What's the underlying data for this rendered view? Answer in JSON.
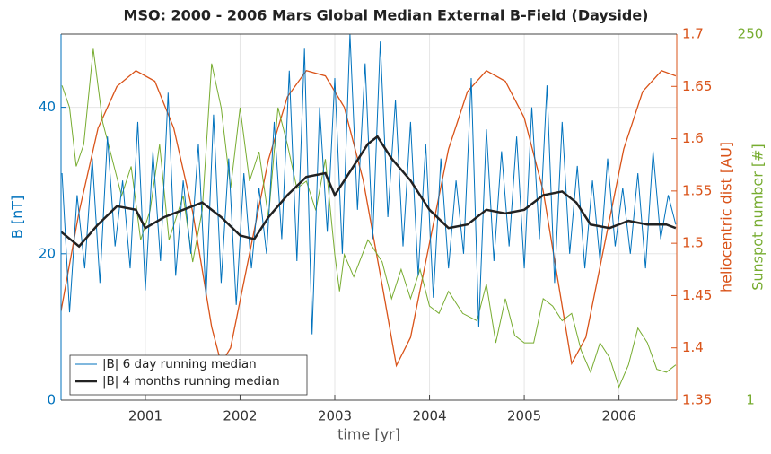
{
  "chart_data": {
    "type": "line",
    "title": "MSO: 2000 - 2006 Mars Global Median External B-Field (Dayside)",
    "xlabel": "time [yr]",
    "ylabel": "B [nT]",
    "y2label": "heliocentric dist [AU]",
    "y3label": "Sunspot number [#]",
    "xlim": [
      2000.11,
      2006.61
    ],
    "xticks": [
      2001,
      2002,
      2003,
      2004,
      2005,
      2006
    ],
    "ylim": [
      0,
      50
    ],
    "yticks": [
      0,
      20,
      40
    ],
    "ycolor": "#0072bd",
    "y2lim": [
      1.35,
      1.7
    ],
    "y2ticks": [
      1.35,
      1.4,
      1.45,
      1.5,
      1.55,
      1.6,
      1.65,
      1.7
    ],
    "y2color": "#d95319",
    "y3lim": [
      1,
      250
    ],
    "y3ticks": [
      1,
      250
    ],
    "y3color": "#77ac30",
    "grid": true,
    "legend": "lower left",
    "series": [
      {
        "name": "|B| 6 day running median",
        "color": "#0072bd",
        "axis": "y",
        "width": 1,
        "legend": true,
        "x": [
          2000.12,
          2000.2,
          2000.28,
          2000.36,
          2000.44,
          2000.52,
          2000.6,
          2000.68,
          2000.76,
          2000.84,
          2000.92,
          2001,
          2001.08,
          2001.16,
          2001.24,
          2001.32,
          2001.4,
          2001.48,
          2001.56,
          2001.64,
          2001.72,
          2001.8,
          2001.88,
          2001.96,
          2002.04,
          2002.12,
          2002.2,
          2002.28,
          2002.36,
          2002.44,
          2002.52,
          2002.6,
          2002.68,
          2002.76,
          2002.84,
          2002.92,
          2003,
          2003.08,
          2003.16,
          2003.24,
          2003.32,
          2003.4,
          2003.48,
          2003.56,
          2003.64,
          2003.72,
          2003.8,
          2003.88,
          2003.96,
          2004.04,
          2004.12,
          2004.2,
          2004.28,
          2004.36,
          2004.44,
          2004.52,
          2004.6,
          2004.68,
          2004.76,
          2004.84,
          2004.92,
          2005,
          2005.08,
          2005.16,
          2005.24,
          2005.32,
          2005.4,
          2005.48,
          2005.56,
          2005.64,
          2005.72,
          2005.8,
          2005.88,
          2005.96,
          2006.04,
          2006.12,
          2006.2,
          2006.28,
          2006.36,
          2006.44,
          2006.52,
          2006.6
        ],
        "values": [
          31,
          12,
          28,
          18,
          33,
          16,
          36,
          21,
          30,
          18,
          38,
          15,
          34,
          19,
          42,
          17,
          30,
          20,
          35,
          14,
          39,
          16,
          33,
          13,
          31,
          18,
          29,
          20,
          38,
          22,
          45,
          19,
          48,
          9,
          40,
          23,
          44,
          20,
          50,
          26,
          46,
          22,
          49,
          25,
          41,
          21,
          38,
          17,
          35,
          14,
          33,
          18,
          30,
          20,
          44,
          10,
          37,
          19,
          34,
          21,
          36,
          18,
          40,
          22,
          43,
          16,
          38,
          20,
          32,
          18,
          30,
          19,
          33,
          21,
          29,
          20,
          31,
          18,
          34,
          22,
          28,
          24
        ]
      },
      {
        "name": "|B| 4 months running median",
        "color": "#222222",
        "axis": "y",
        "width": 2.5,
        "legend": true,
        "x": [
          2000.11,
          2000.3,
          2000.5,
          2000.7,
          2000.9,
          2001.0,
          2001.2,
          2001.4,
          2001.6,
          2001.8,
          2002.0,
          2002.15,
          2002.3,
          2002.5,
          2002.7,
          2002.9,
          2003.0,
          2003.2,
          2003.35,
          2003.45,
          2003.6,
          2003.8,
          2004.0,
          2004.2,
          2004.4,
          2004.6,
          2004.8,
          2005.0,
          2005.2,
          2005.4,
          2005.55,
          2005.7,
          2005.9,
          2006.1,
          2006.3,
          2006.5,
          2006.6
        ],
        "values": [
          23,
          21,
          24,
          26.5,
          26,
          23.5,
          25,
          26,
          27,
          25,
          22.5,
          22,
          25,
          28,
          30.5,
          31,
          28,
          32,
          35,
          36,
          33,
          30,
          26,
          23.5,
          24,
          26,
          25.5,
          26,
          28,
          28.5,
          27,
          24,
          23.5,
          24.5,
          24,
          24,
          23.5
        ]
      },
      {
        "color": "#d95319",
        "axis": "y2",
        "width": 1.3,
        "x": [
          2000.1,
          2000.3,
          2000.5,
          2000.7,
          2000.9,
          2001.1,
          2001.3,
          2001.5,
          2001.7,
          2001.8,
          2001.9,
          2002.1,
          2002.3,
          2002.5,
          2002.7,
          2002.9,
          2003.1,
          2003.3,
          2003.5,
          2003.65,
          2003.8,
          2004.0,
          2004.2,
          2004.4,
          2004.6,
          2004.8,
          2005.0,
          2005.2,
          2005.4,
          2005.5,
          2005.65,
          2005.85,
          2006.05,
          2006.25,
          2006.45,
          2006.6
        ],
        "values": [
          1.43,
          1.53,
          1.61,
          1.65,
          1.665,
          1.655,
          1.61,
          1.53,
          1.42,
          1.385,
          1.4,
          1.49,
          1.58,
          1.64,
          1.665,
          1.66,
          1.63,
          1.56,
          1.46,
          1.383,
          1.41,
          1.5,
          1.59,
          1.645,
          1.665,
          1.655,
          1.62,
          1.55,
          1.44,
          1.385,
          1.41,
          1.5,
          1.59,
          1.645,
          1.665,
          1.66
        ]
      },
      {
        "color": "#77ac30",
        "axis": "y3",
        "width": 1,
        "x": [
          2000.12,
          2000.2,
          2000.27,
          2000.35,
          2000.45,
          2000.55,
          2000.65,
          2000.75,
          2000.85,
          2000.95,
          2001.05,
          2001.15,
          2001.25,
          2001.4,
          2001.5,
          2001.6,
          2001.7,
          2001.8,
          2001.9,
          2002.0,
          2002.1,
          2002.2,
          2002.3,
          2002.4,
          2002.5,
          2002.6,
          2002.7,
          2002.8,
          2002.9,
          2003.0,
          2003.05,
          2003.1,
          2003.2,
          2003.35,
          2003.5,
          2003.6,
          2003.7,
          2003.8,
          2003.9,
          2004.0,
          2004.1,
          2004.2,
          2004.35,
          2004.5,
          2004.6,
          2004.7,
          2004.8,
          2004.9,
          2005.0,
          2005.1,
          2005.2,
          2005.3,
          2005.4,
          2005.5,
          2005.6,
          2005.7,
          2005.8,
          2005.9,
          2006.0,
          2006.1,
          2006.2,
          2006.3,
          2006.4,
          2006.5,
          2006.6
        ],
        "values": [
          215,
          200,
          160,
          175,
          240,
          190,
          165,
          140,
          160,
          110,
          130,
          175,
          110,
          140,
          95,
          130,
          230,
          200,
          145,
          200,
          150,
          170,
          125,
          200,
          175,
          145,
          150,
          130,
          165,
          100,
          75,
          100,
          85,
          110,
          95,
          70,
          90,
          70,
          90,
          65,
          60,
          75,
          60,
          55,
          80,
          40,
          70,
          45,
          40,
          40,
          70,
          65,
          55,
          60,
          35,
          20,
          40,
          30,
          10,
          25,
          50,
          40,
          22,
          20,
          25
        ]
      }
    ]
  }
}
